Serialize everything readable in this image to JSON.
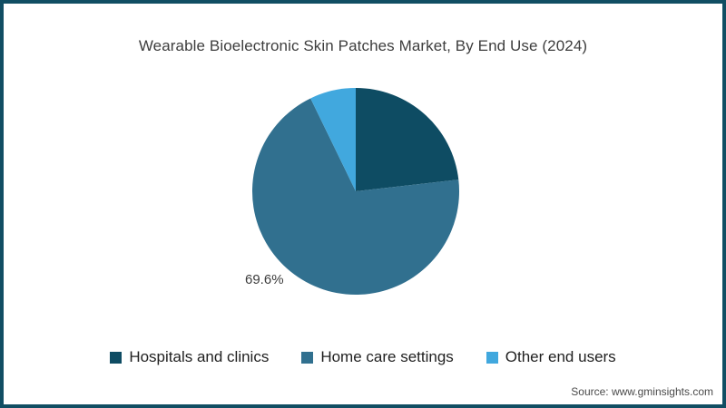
{
  "frame": {
    "border_color": "#114e63",
    "background": "#ffffff"
  },
  "header": {
    "title": "Wearable Bioelectronic Skin Patches Market, By End Use (2024)"
  },
  "chart_data": {
    "type": "pie",
    "title": "Wearable Bioelectronic Skin Patches Market, By End Use (2024)",
    "unit": "%",
    "start_angle": "top",
    "direction": "clockwise",
    "legend_position": "bottom",
    "slices": [
      {
        "label": "Hospitals and clinics",
        "value": 23.2,
        "color": "#0e4c63"
      },
      {
        "label": "Home care settings",
        "value": 69.6,
        "color": "#31708f"
      },
      {
        "label": "Other end users",
        "value": 7.2,
        "color": "#41a8de"
      }
    ],
    "data_label": "69.6%"
  },
  "footer": {
    "source": "Source: www.gminsights.com"
  }
}
